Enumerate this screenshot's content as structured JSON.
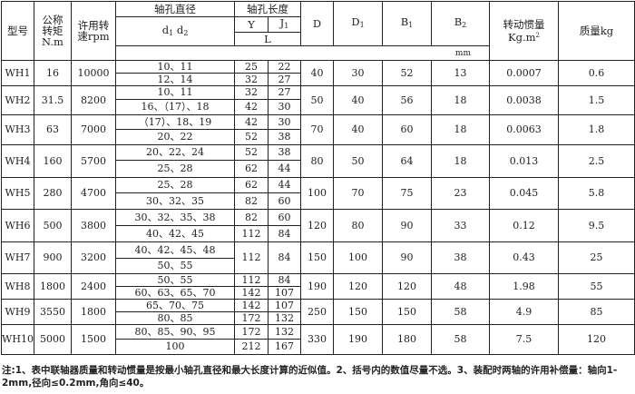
{
  "headers": {
    "model": "型号",
    "torque": "公称\n转矩\nN.m",
    "torque_lines": [
      "公称",
      "转矩",
      "N.m"
    ],
    "speed_lines": [
      "许用转",
      "速rpm"
    ],
    "bore_diameter": "轴孔直径",
    "bore_diameter_sub": "d1 d2",
    "bore_length": "轴孔长度",
    "Y": "Y",
    "J1": "J1",
    "L": "L",
    "D": "D",
    "D1": "D1",
    "B1": "B1",
    "B2": "B2",
    "inertia_lines": [
      "转动惯量",
      "Kg.m2"
    ],
    "mass": "质量kg",
    "unit": "mm"
  },
  "rows": [
    {
      "model": "WH1",
      "torque": "16",
      "speed": "10000",
      "sub": [
        {
          "d": "10、11",
          "Y": "25",
          "J1": "22"
        },
        {
          "d": "12、14",
          "Y": "32",
          "J1": "27"
        }
      ],
      "D": "40",
      "D1": "30",
      "B1": "52",
      "B2": "13",
      "inertia": "0.0007",
      "mass": "0.6"
    },
    {
      "model": "WH2",
      "torque": "31.5",
      "speed": "8200",
      "sub": [
        {
          "d": "10、11",
          "Y": "32",
          "J1": "27"
        },
        {
          "d": "16、（17）、18",
          "Y": "42",
          "J1": "30"
        }
      ],
      "D": "50",
      "D1": "40",
      "B1": "56",
      "B2": "18",
      "inertia": "0.0038",
      "mass": "1.5"
    },
    {
      "model": "WH3",
      "torque": "63",
      "speed": "7000",
      "sub": [
        {
          "d": "（17）、18、19",
          "Y": "42",
          "J1": "30"
        },
        {
          "d": "20、22",
          "Y": "52",
          "J1": "38"
        }
      ],
      "D": "70",
      "D1": "40",
      "B1": "60",
      "B2": "18",
      "inertia": "0.0063",
      "mass": "1.8"
    },
    {
      "model": "WH4",
      "torque": "160",
      "speed": "5700",
      "sub": [
        {
          "d": "20、22、24",
          "Y": "52",
          "J1": "38"
        },
        {
          "d": "25、28",
          "Y": "62",
          "J1": "44"
        }
      ],
      "D": "80",
      "D1": "50",
      "B1": "64",
      "B2": "18",
      "inertia": "0.013",
      "mass": "2.5"
    },
    {
      "model": "WH5",
      "torque": "280",
      "speed": "4700",
      "sub": [
        {
          "d": "25、28",
          "Y": "62",
          "J1": "44"
        },
        {
          "d": "30、32、35",
          "Y": "82",
          "J1": "60"
        }
      ],
      "D": "100",
      "D1": "70",
      "B1": "75",
      "B2": "23",
      "inertia": "0.045",
      "mass": "5.8"
    },
    {
      "model": "WH6",
      "torque": "500",
      "speed": "3800",
      "sub": [
        {
          "d": "30、32、35、38",
          "Y": "82",
          "J1": "60"
        },
        {
          "d": "40、42、45",
          "Y": "112",
          "J1": "84"
        }
      ],
      "D": "120",
      "D1": "80",
      "B1": "90",
      "B2": "33",
      "inertia": "0.12",
      "mass": "9.5"
    },
    {
      "model": "WH7",
      "torque": "900",
      "speed": "3200",
      "sub": [
        {
          "d": "40、42、45、48"
        },
        {
          "d": "50、55"
        }
      ],
      "Y": "112",
      "J1": "84",
      "D": "150",
      "D1": "100",
      "B1": "90",
      "B2": "38",
      "inertia": "0.43",
      "mass": "25"
    },
    {
      "model": "WH8",
      "torque": "1800",
      "speed": "2400",
      "sub": [
        {
          "d": "50、55",
          "Y": "112",
          "J1": "84"
        },
        {
          "d": "60、63、65、70",
          "Y": "142",
          "J1": "107"
        }
      ],
      "D": "190",
      "D1": "120",
      "B1": "120",
      "B2": "48",
      "inertia": "1.98",
      "mass": "55"
    },
    {
      "model": "WH9",
      "torque": "3550",
      "speed": "1800",
      "sub": [
        {
          "d": "65、70、75",
          "Y": "142",
          "J1": "107"
        },
        {
          "d": "80、85",
          "Y": "172",
          "J1": "132"
        }
      ],
      "D": "250",
      "D1": "150",
      "B1": "150",
      "B2": "58",
      "inertia": "4.9",
      "mass": "85"
    },
    {
      "model": "WH10",
      "torque": "5000",
      "speed": "1500",
      "sub": [
        {
          "d": "80、85、90、95",
          "Y": "172",
          "J1": "132"
        },
        {
          "d": "100",
          "Y": "212",
          "J1": "167"
        }
      ],
      "D": "330",
      "D1": "190",
      "B1": "180",
      "B2": "58",
      "inertia": "7.5",
      "mass": "120"
    }
  ],
  "note": "注:1、表中联轴器质量和转动惯量是按最小轴孔直径和最大长度计算的近似值。2、括号内的数值尽量不选。3、装配时两轴的许用补偿量：轴向1-2mm,径向≤0.2mm,角向≤40。"
}
